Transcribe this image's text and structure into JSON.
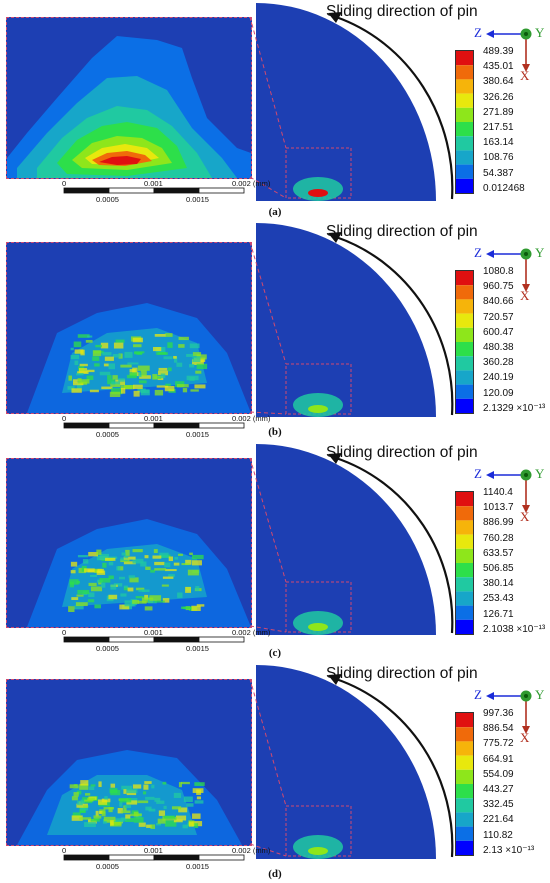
{
  "colors": {
    "background": "#1d3fb3",
    "scale": [
      "#0000ff",
      "#0b6fe6",
      "#17a6c9",
      "#20c9a1",
      "#2ddf4a",
      "#8ee61b",
      "#e8e80d",
      "#f6b40a",
      "#f06a0a",
      "#e01010"
    ],
    "frame": "#d04a70",
    "axis_z": "#1b2bd8",
    "axis_y": "#2f9a2f",
    "axis_x": "#b13020"
  },
  "icons": {
    "arrow": "sliding-arrow-icon",
    "axes": "coordinate-axes-icon"
  },
  "panels": [
    {
      "id": "a",
      "caption": "(a)",
      "title": "Sliding direction of pin",
      "legend": [
        "489.39",
        "435.01",
        "380.64",
        "326.26",
        "271.89",
        "217.51",
        "163.14",
        "108.76",
        "54.387",
        "0.012468"
      ],
      "axes": {
        "z": "Z",
        "y": "Y",
        "x": "X"
      },
      "scale": {
        "ticks": [
          "0",
          "0.001",
          "0.002 (mm)"
        ],
        "subticks": [
          "0.0005",
          "0.0015"
        ]
      }
    },
    {
      "id": "b",
      "caption": "(b)",
      "title": "Sliding direction of pin",
      "legend": [
        "1080.8",
        "960.75",
        "840.66",
        "720.57",
        "600.47",
        "480.38",
        "360.28",
        "240.19",
        "120.09",
        "2.1329 ×10⁻¹³"
      ],
      "axes": {
        "z": "Z",
        "y": "Y",
        "x": "X"
      },
      "scale": {
        "ticks": [
          "0",
          "0.001",
          "0.002 (mm)"
        ],
        "subticks": [
          "0.0005",
          "0.0015"
        ]
      }
    },
    {
      "id": "c",
      "caption": "(c)",
      "title": "Sliding direction of pin",
      "legend": [
        "1140.4",
        "1013.7",
        "886.99",
        "760.28",
        "633.57",
        "506.85",
        "380.14",
        "253.43",
        "126.71",
        "2.1038 ×10⁻¹³"
      ],
      "axes": {
        "z": "Z",
        "y": "Y",
        "x": "X"
      },
      "scale": {
        "ticks": [
          "0",
          "0.001",
          "0.002 (mm)"
        ],
        "subticks": [
          "0.0005",
          "0.0015"
        ]
      }
    },
    {
      "id": "d",
      "caption": "(d)",
      "title": "Sliding direction of pin",
      "legend": [
        "997.36",
        "886.54",
        "775.72",
        "664.91",
        "554.09",
        "443.27",
        "332.45",
        "221.64",
        "110.82",
        "2.13 ×10⁻¹³"
      ],
      "axes": {
        "z": "Z",
        "y": "Y",
        "x": "X"
      },
      "scale": {
        "ticks": [
          "0",
          "0.001",
          "0.002 (mm)"
        ],
        "subticks": [
          "0.0005",
          "0.0015"
        ]
      }
    }
  ]
}
